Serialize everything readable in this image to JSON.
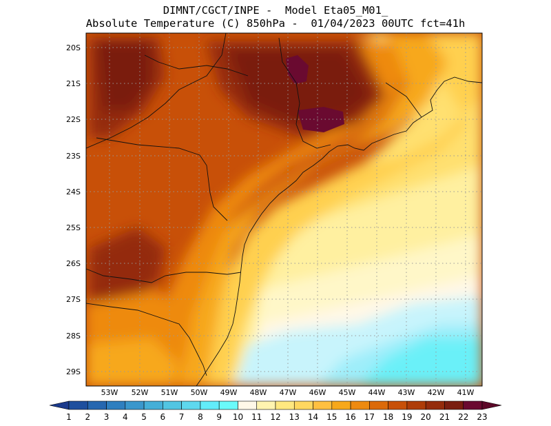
{
  "title": {
    "line1": "DIMNT/CGCT/INPE -  Model Eta05_M01_",
    "line2": "Absolute Temperature (C) 850hPa -  01/04/2023 00UTC fct=41h"
  },
  "lat_labels": [
    "20S",
    "21S",
    "22S",
    "23S",
    "24S",
    "25S",
    "26S",
    "27S",
    "28S",
    "29S"
  ],
  "lon_labels": [
    "53W",
    "52W",
    "51W",
    "50W",
    "49W",
    "48W",
    "47W",
    "46W",
    "45W",
    "44W",
    "43W",
    "42W",
    "41W"
  ],
  "colorbar": {
    "labels": [
      "1",
      "2",
      "3",
      "4",
      "5",
      "6",
      "7",
      "8",
      "9",
      "10",
      "11",
      "12",
      "13",
      "14",
      "15",
      "16",
      "17",
      "18",
      "19",
      "20",
      "21",
      "22",
      "23"
    ],
    "colors": [
      "#1a3a8c",
      "#1e4f9e",
      "#2667b0",
      "#2f7fbf",
      "#3a97cc",
      "#45afd8",
      "#52c5e2",
      "#5ed8ee",
      "#62ecfa",
      "#6afafa",
      "#fff8e8",
      "#fff4b0",
      "#ffe880",
      "#ffd860",
      "#ffc040",
      "#f7a81a",
      "#ee8a10",
      "#dc6a0a",
      "#c85008",
      "#ae3c08",
      "#942c0c",
      "#7a1e10",
      "#6a0a30",
      "#5c0828"
    ]
  },
  "map": {
    "region": "Southeast Brazil",
    "field": "850hPa temperature"
  }
}
